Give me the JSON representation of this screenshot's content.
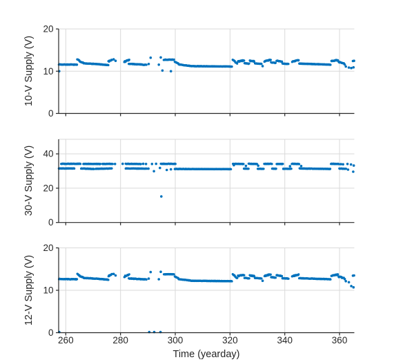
{
  "chart_data": {
    "type": "scatter",
    "title": "",
    "xlabel": "Time (yearday)",
    "xlim": [
      257.4,
      365.4
    ],
    "xticks": [
      260,
      280,
      300,
      320,
      340,
      360
    ],
    "grid": true,
    "legend": "none",
    "marker_color": "#0072BD",
    "axis_color": "#262626",
    "grid_color": "#d9d9d9",
    "panels": [
      {
        "ylabel": "10-V Supply (V)",
        "ylim": [
          0,
          20
        ],
        "yticks": [
          0,
          10,
          20
        ],
        "segments": [
          [
            257.5,
            264.2,
            11.6,
            11.55,
            0.12,
            0.12
          ],
          [
            264.2,
            265.1,
            12.85,
            12.4,
            0.14,
            0.15
          ],
          [
            265.1,
            266.6,
            12.3,
            11.95,
            0.14,
            0.12
          ],
          [
            266.6,
            271.0,
            11.85,
            11.7,
            0.12,
            0.1
          ],
          [
            271.0,
            275.6,
            11.7,
            11.45,
            0.12,
            0.1
          ],
          [
            275.6,
            276.9,
            12.3,
            12.75,
            0.18,
            0.2
          ],
          [
            281.4,
            283.2,
            12.2,
            12.7,
            0.16,
            0.3
          ],
          [
            283.0,
            289.6,
            11.75,
            11.5,
            0.12,
            0.12
          ],
          [
            295.8,
            299.6,
            12.7,
            12.75,
            0.12,
            0.1
          ],
          [
            299.8,
            301.2,
            12.2,
            11.8,
            0.16,
            0.12
          ],
          [
            301.2,
            305.5,
            11.6,
            11.25,
            0.12,
            0.1
          ],
          [
            305.5,
            320.8,
            11.2,
            11.1,
            0.1,
            0.08
          ],
          [
            321.0,
            321.8,
            12.7,
            12.35,
            0.14,
            0.12
          ],
          [
            321.9,
            322.7,
            12.1,
            11.8,
            0.18,
            0.12
          ],
          [
            322.9,
            325.2,
            12.3,
            12.55,
            0.14,
            0.25
          ],
          [
            325.3,
            327.1,
            11.9,
            11.75,
            0.14,
            0.12
          ],
          [
            327.2,
            329.0,
            12.45,
            12.3,
            0.14,
            0.2
          ],
          [
            329.1,
            331.5,
            11.85,
            11.75,
            0.14,
            0.1
          ],
          [
            332.6,
            334.9,
            12.35,
            12.7,
            0.14,
            0.22
          ],
          [
            335.0,
            336.7,
            12.05,
            11.95,
            0.14,
            0.15
          ],
          [
            337.0,
            339.0,
            12.5,
            12.3,
            0.14,
            0.15
          ],
          [
            339.1,
            341.4,
            11.8,
            11.72,
            0.13,
            0.1
          ],
          [
            342.7,
            345.1,
            12.25,
            12.65,
            0.14,
            0.22
          ],
          [
            345.3,
            350.0,
            11.8,
            11.7,
            0.12,
            0.1
          ],
          [
            350.0,
            356.8,
            11.7,
            11.55,
            0.12,
            0.1
          ],
          [
            357.0,
            359.4,
            12.4,
            12.65,
            0.14,
            0.2
          ],
          [
            359.6,
            361.7,
            12.2,
            11.8,
            0.18,
            0.25
          ]
        ],
        "points": [
          [
            257.6,
            10.0
          ],
          [
            277.5,
            12.8
          ],
          [
            278.2,
            12.45
          ],
          [
            290.3,
            11.7
          ],
          [
            291.0,
            13.2
          ],
          [
            294.0,
            11.55
          ],
          [
            294.7,
            13.25
          ],
          [
            295.3,
            10.15
          ],
          [
            298.4,
            10.0
          ],
          [
            331.9,
            11.2
          ],
          [
            360.9,
            11.95
          ],
          [
            361.9,
            11.6
          ],
          [
            362.3,
            11.1
          ],
          [
            363.4,
            10.85
          ],
          [
            364.3,
            10.75
          ],
          [
            364.9,
            12.4
          ],
          [
            365.3,
            12.45
          ],
          [
            365.1,
            10.9
          ]
        ]
      },
      {
        "ylabel": "30-V Supply (V)",
        "ylim": [
          0,
          48.5
        ],
        "yticks": [
          0,
          20,
          40
        ],
        "segments": [
          [
            258.3,
            265.4,
            34.2,
            34.2,
            0.12,
            0.22
          ],
          [
            266.4,
            272.7,
            34.2,
            34.1,
            0.12,
            0.22
          ],
          [
            273.4,
            277.2,
            34.1,
            34.2,
            0.12,
            0.22
          ],
          [
            281.9,
            287.6,
            34.2,
            34.1,
            0.14,
            0.22
          ],
          [
            294.7,
            300.2,
            34.2,
            34.2,
            0.12,
            0.22
          ],
          [
            321.1,
            325.0,
            34.2,
            34.1,
            0.12,
            0.22
          ],
          [
            326.8,
            330.0,
            34.2,
            34.1,
            0.12,
            0.22
          ],
          [
            332.5,
            335.3,
            34.2,
            34.2,
            0.12,
            0.22
          ],
          [
            337.0,
            339.3,
            34.1,
            34.1,
            0.12,
            0.22
          ],
          [
            342.6,
            345.3,
            34.2,
            34.1,
            0.12,
            0.22
          ],
          [
            356.9,
            359.8,
            34.2,
            34.1,
            0.12,
            0.22
          ],
          [
            257.5,
            263.2,
            31.5,
            31.5,
            0.12,
            0.22
          ],
          [
            265.6,
            270.4,
            31.5,
            31.2,
            0.12,
            0.22
          ],
          [
            270.9,
            276.9,
            31.3,
            31.5,
            0.12,
            0.22
          ],
          [
            281.9,
            289.6,
            31.5,
            31.4,
            0.14,
            0.22
          ],
          [
            299.8,
            320.4,
            31.2,
            31.1,
            0.1,
            0.18
          ],
          [
            325.1,
            326.9,
            31.4,
            31.4,
            0.13,
            0.2
          ],
          [
            330.1,
            332.4,
            31.3,
            31.3,
            0.13,
            0.2
          ],
          [
            335.4,
            336.9,
            31.4,
            31.3,
            0.13,
            0.2
          ],
          [
            339.4,
            342.5,
            31.3,
            31.3,
            0.13,
            0.2
          ],
          [
            345.4,
            356.7,
            31.5,
            31.2,
            0.11,
            0.18
          ],
          [
            359.9,
            362.5,
            31.4,
            31.3,
            0.14,
            0.2
          ]
        ],
        "points": [
          [
            257.6,
            31.5
          ],
          [
            278.0,
            34.1
          ],
          [
            280.8,
            34.2
          ],
          [
            288.3,
            34.2
          ],
          [
            289.3,
            34.1
          ],
          [
            291.5,
            34.1
          ],
          [
            293.0,
            34.2
          ],
          [
            290.2,
            31.4
          ],
          [
            292.2,
            29.9
          ],
          [
            294.4,
            31.8
          ],
          [
            296.9,
            30.6
          ],
          [
            298.4,
            31.0
          ],
          [
            294.9,
            15.2
          ],
          [
            321.4,
            33.4
          ],
          [
            325.8,
            33.0
          ],
          [
            330.3,
            33.1
          ],
          [
            341.9,
            32.8
          ],
          [
            346.0,
            32.9
          ],
          [
            360.5,
            34.0
          ],
          [
            361.3,
            33.9
          ],
          [
            362.9,
            34.1
          ],
          [
            364.2,
            33.8
          ],
          [
            365.2,
            33.2
          ],
          [
            363.1,
            30.8
          ],
          [
            365.0,
            29.6
          ]
        ]
      },
      {
        "ylabel": "12-V Supply (V)",
        "ylim": [
          0,
          20
        ],
        "yticks": [
          0,
          10,
          20
        ],
        "segments": [
          [
            257.5,
            264.2,
            12.65,
            12.6,
            0.12,
            0.12
          ],
          [
            264.2,
            265.1,
            13.9,
            13.45,
            0.14,
            0.15
          ],
          [
            265.1,
            266.6,
            13.35,
            13.0,
            0.14,
            0.12
          ],
          [
            266.6,
            271.0,
            12.9,
            12.75,
            0.12,
            0.1
          ],
          [
            271.0,
            275.6,
            12.75,
            12.5,
            0.12,
            0.1
          ],
          [
            275.6,
            276.9,
            13.35,
            13.8,
            0.18,
            0.2
          ],
          [
            281.4,
            283.2,
            13.25,
            13.75,
            0.16,
            0.3
          ],
          [
            283.0,
            289.6,
            12.8,
            12.55,
            0.12,
            0.12
          ],
          [
            295.8,
            299.6,
            13.75,
            13.8,
            0.12,
            0.1
          ],
          [
            299.8,
            301.2,
            13.25,
            12.85,
            0.16,
            0.12
          ],
          [
            301.2,
            305.5,
            12.65,
            12.3,
            0.12,
            0.1
          ],
          [
            305.5,
            320.8,
            12.25,
            12.15,
            0.1,
            0.08
          ],
          [
            321.0,
            321.8,
            13.75,
            13.4,
            0.14,
            0.12
          ],
          [
            321.9,
            322.7,
            13.15,
            12.85,
            0.18,
            0.12
          ],
          [
            322.9,
            325.2,
            13.35,
            13.6,
            0.14,
            0.25
          ],
          [
            325.3,
            327.1,
            12.95,
            12.8,
            0.14,
            0.12
          ],
          [
            327.2,
            329.0,
            13.5,
            13.35,
            0.14,
            0.2
          ],
          [
            329.1,
            331.5,
            12.9,
            12.8,
            0.14,
            0.1
          ],
          [
            332.6,
            334.9,
            13.4,
            13.75,
            0.14,
            0.22
          ],
          [
            335.0,
            336.7,
            13.1,
            13.0,
            0.14,
            0.15
          ],
          [
            337.0,
            339.0,
            13.55,
            13.35,
            0.14,
            0.15
          ],
          [
            339.1,
            341.4,
            12.85,
            12.77,
            0.13,
            0.1
          ],
          [
            342.7,
            345.1,
            13.3,
            13.7,
            0.14,
            0.22
          ],
          [
            345.3,
            350.0,
            12.85,
            12.75,
            0.12,
            0.1
          ],
          [
            350.0,
            356.8,
            12.75,
            12.6,
            0.12,
            0.1
          ],
          [
            357.0,
            359.4,
            13.45,
            13.7,
            0.14,
            0.2
          ],
          [
            359.6,
            361.7,
            13.25,
            12.85,
            0.18,
            0.25
          ]
        ],
        "points": [
          [
            257.6,
            0.15
          ],
          [
            277.5,
            13.85
          ],
          [
            278.2,
            13.5
          ],
          [
            290.3,
            12.75
          ],
          [
            291.0,
            14.3
          ],
          [
            294.0,
            12.6
          ],
          [
            294.7,
            14.35
          ],
          [
            290.5,
            0.15
          ],
          [
            292.3,
            0.15
          ],
          [
            294.6,
            0.15
          ],
          [
            331.9,
            12.25
          ],
          [
            360.9,
            13.0
          ],
          [
            361.9,
            12.65
          ],
          [
            362.3,
            12.15
          ],
          [
            363.4,
            11.9
          ],
          [
            364.3,
            11.0
          ],
          [
            364.9,
            13.45
          ],
          [
            365.3,
            13.5
          ],
          [
            365.1,
            10.7
          ]
        ]
      }
    ]
  }
}
